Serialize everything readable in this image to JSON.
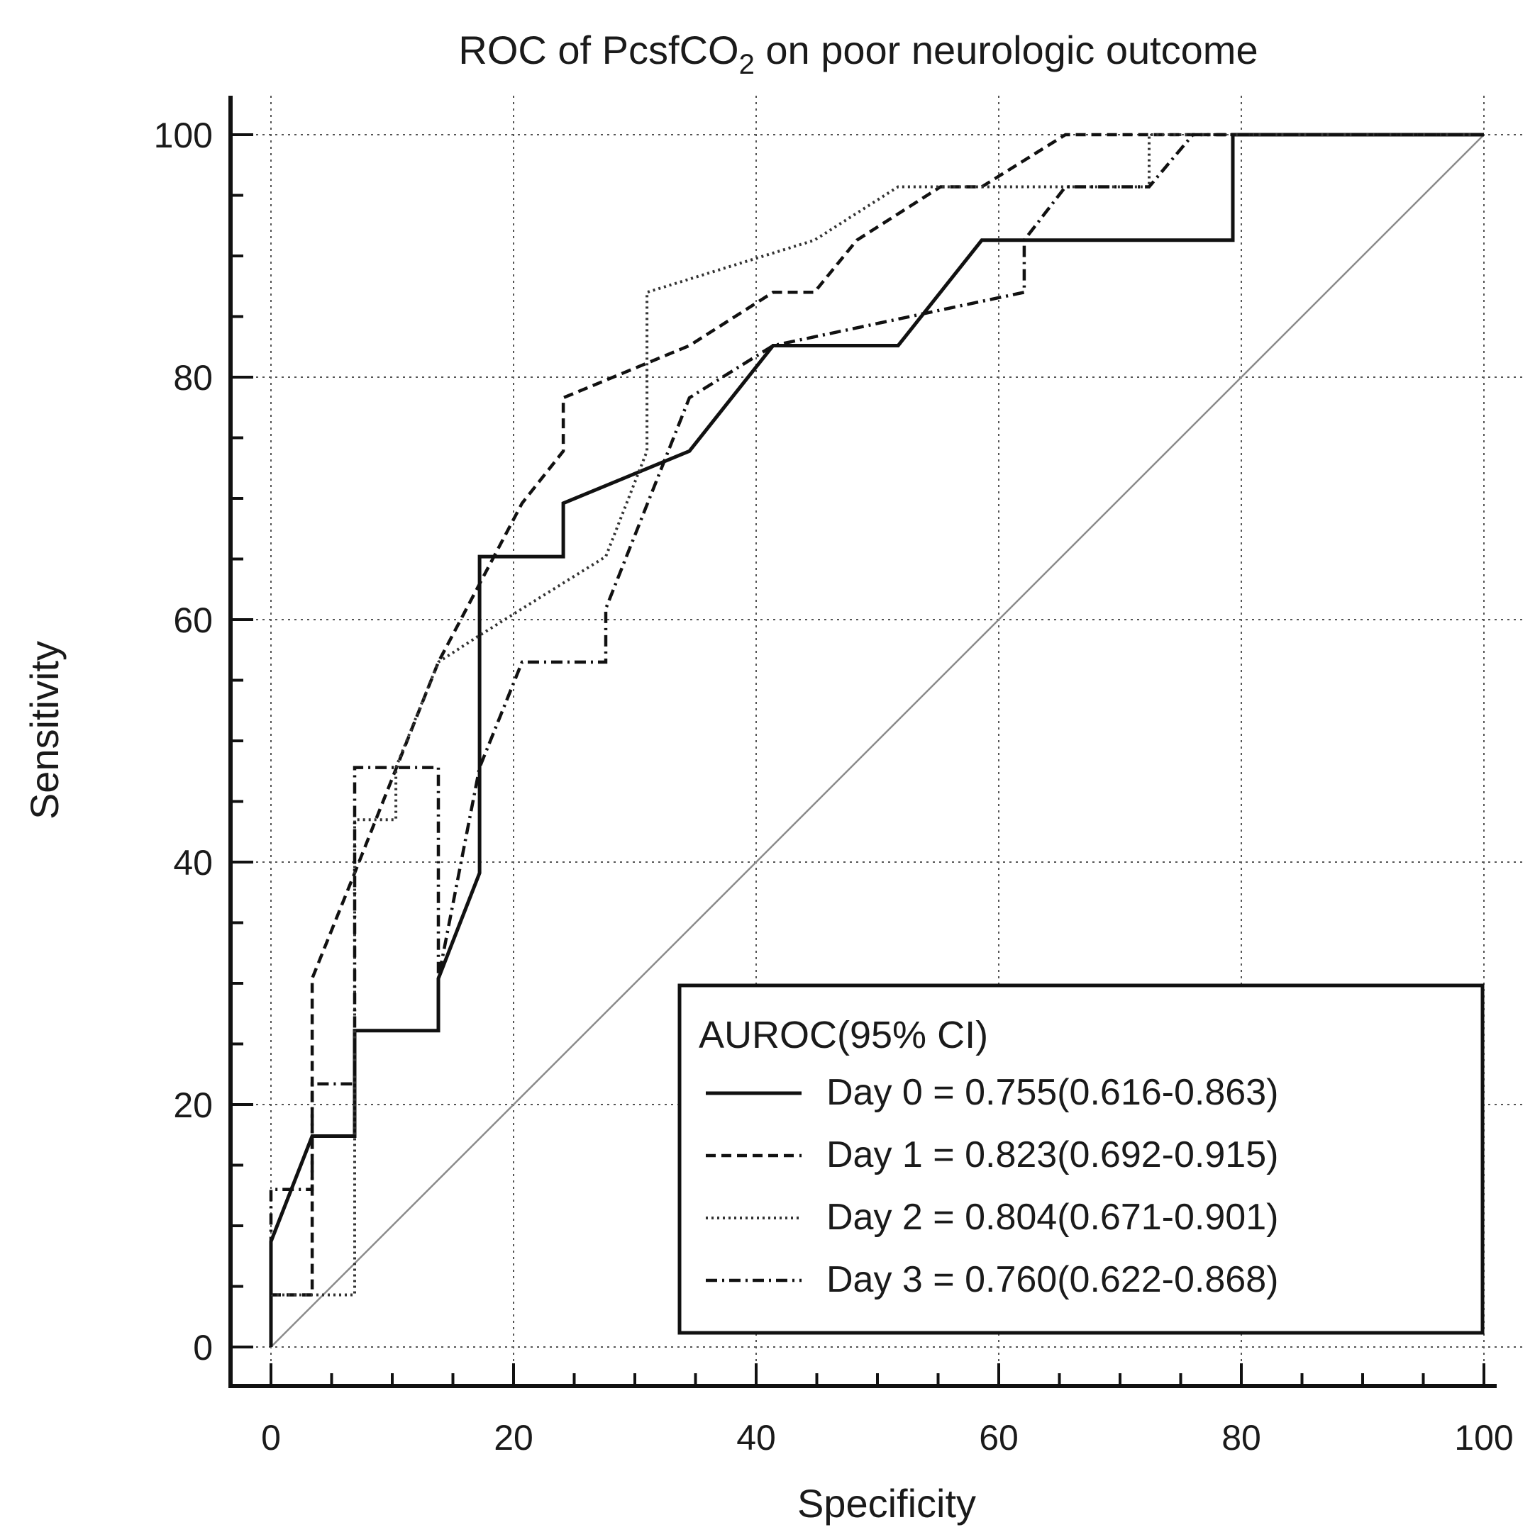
{
  "chart_data": {
    "type": "line",
    "title": "ROC of PcsfCO",
    "title_subscript": "2",
    "title_suffix": " on poor neurologic outcome",
    "xlabel": "Specificity",
    "ylabel": "Sensitivity",
    "xlim": [
      0,
      100
    ],
    "ylim": [
      0,
      100
    ],
    "xticks": [
      "0",
      "20",
      "40",
      "60",
      "80",
      "100"
    ],
    "yticks": [
      "0",
      "20",
      "40",
      "60",
      "80",
      "100"
    ],
    "grid": true,
    "legend_position": "bottom-right",
    "legend_title": "AUROC(95% CI)",
    "reference_line": {
      "x": [
        0,
        100
      ],
      "y": [
        0,
        100
      ],
      "style": "solid-gray"
    },
    "series": [
      {
        "name": "Day 0 = 0.755(0.616-0.863)",
        "style": "solid",
        "x": [
          0,
          0,
          3.4,
          3.4,
          6.9,
          6.9,
          13.8,
          13.8,
          17.2,
          17.2,
          24.1,
          24.1,
          34.5,
          41.4,
          51.7,
          58.6,
          62.1,
          79.3,
          79.3,
          100
        ],
        "y": [
          0,
          8.7,
          17.4,
          17.4,
          17.4,
          26.1,
          26.1,
          30.4,
          39.1,
          65.2,
          65.2,
          69.6,
          73.9,
          82.6,
          82.6,
          91.3,
          91.3,
          91.3,
          100,
          100
        ]
      },
      {
        "name": "Day 1 = 0.823(0.692-0.915)",
        "style": "dashed",
        "x": [
          0,
          3.4,
          3.4,
          6.9,
          13.8,
          13.8,
          20.7,
          24.1,
          24.1,
          34.5,
          41.4,
          44.8,
          48.3,
          55.2,
          58.6,
          65.5,
          76,
          100
        ],
        "y": [
          4.3,
          4.3,
          30.4,
          39.1,
          56.5,
          56.5,
          69.6,
          73.9,
          78.3,
          82.6,
          87.0,
          87.0,
          91.3,
          95.7,
          95.7,
          100,
          100,
          100
        ]
      },
      {
        "name": "Day 2 = 0.804(0.671-0.901)",
        "style": "dotted",
        "x": [
          0,
          0,
          6.9,
          6.9,
          10.3,
          10.3,
          13.8,
          17.2,
          20.7,
          27.6,
          31.0,
          31.0,
          44.8,
          51.7,
          72.4,
          72.4,
          100
        ],
        "y": [
          4.3,
          4.3,
          4.3,
          43.5,
          43.5,
          47.8,
          56.5,
          58.7,
          60.9,
          65.2,
          73.9,
          87.0,
          91.3,
          95.7,
          95.7,
          100,
          100
        ]
      },
      {
        "name": "Day 3 = 0.760(0.622-0.868)",
        "style": "dashdot",
        "x": [
          0,
          0,
          3.4,
          3.4,
          6.9,
          6.9,
          10.3,
          13.8,
          13.8,
          17.2,
          20.7,
          27.6,
          27.6,
          34.5,
          41.4,
          62.1,
          62.1,
          65.5,
          72.4,
          76,
          100
        ],
        "y": [
          4.3,
          13.0,
          13.0,
          21.7,
          21.7,
          47.8,
          47.8,
          47.8,
          30.4,
          47.8,
          56.5,
          56.5,
          60.9,
          78.3,
          82.6,
          87.0,
          91.3,
          95.7,
          95.7,
          100,
          100
        ]
      }
    ]
  }
}
